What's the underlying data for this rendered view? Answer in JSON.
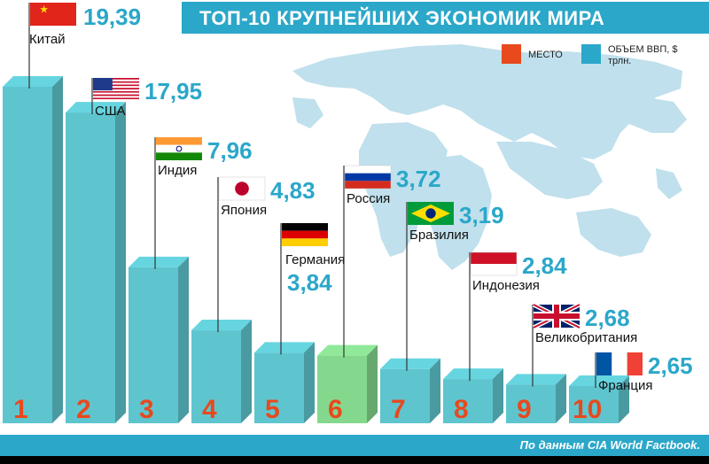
{
  "title": "ТОП-10 КРУПНЕЙШИХ ЭКОНОМИК МИРА",
  "legend": {
    "place": "МЕСТО",
    "gdp": "ОБЪЕМ ВВП, $ трлн.",
    "place_color": "#e8491d",
    "gdp_color": "#2ba7c9"
  },
  "source": "По данным CIA World Factbook.",
  "colors": {
    "bar": "#5ec5cf",
    "bar_highlight": "#84d88e",
    "rank": "#e8491d",
    "value": "#2ba7c9",
    "map": "#bfe0ec"
  },
  "chart_data": {
    "type": "bar",
    "title": "ТОП-10 КРУПНЕЙШИХ ЭКОНОМИК МИРА",
    "categories": [
      "1",
      "2",
      "3",
      "4",
      "5",
      "6",
      "7",
      "8",
      "9",
      "10"
    ],
    "countries": [
      "Китай",
      "США",
      "Индия",
      "Япония",
      "Германия",
      "Россия",
      "Бразилия",
      "Индонезия",
      "Великобритания",
      "Франция"
    ],
    "values": [
      19.39,
      17.95,
      7.96,
      4.83,
      3.84,
      3.72,
      3.19,
      2.84,
      2.68,
      2.65
    ],
    "value_labels": [
      "19,39",
      "17,95",
      "7,96",
      "4,83",
      "3,84",
      "3,72",
      "3,19",
      "2,84",
      "2,68",
      "2,65"
    ],
    "flags": [
      "china-flag",
      "usa-flag",
      "india-flag",
      "japan-flag",
      "germany-flag",
      "russia-flag",
      "brazil-flag",
      "indonesia-flag",
      "uk-flag",
      "france-flag"
    ],
    "highlight_index": 5,
    "unit": "$ трлн."
  }
}
